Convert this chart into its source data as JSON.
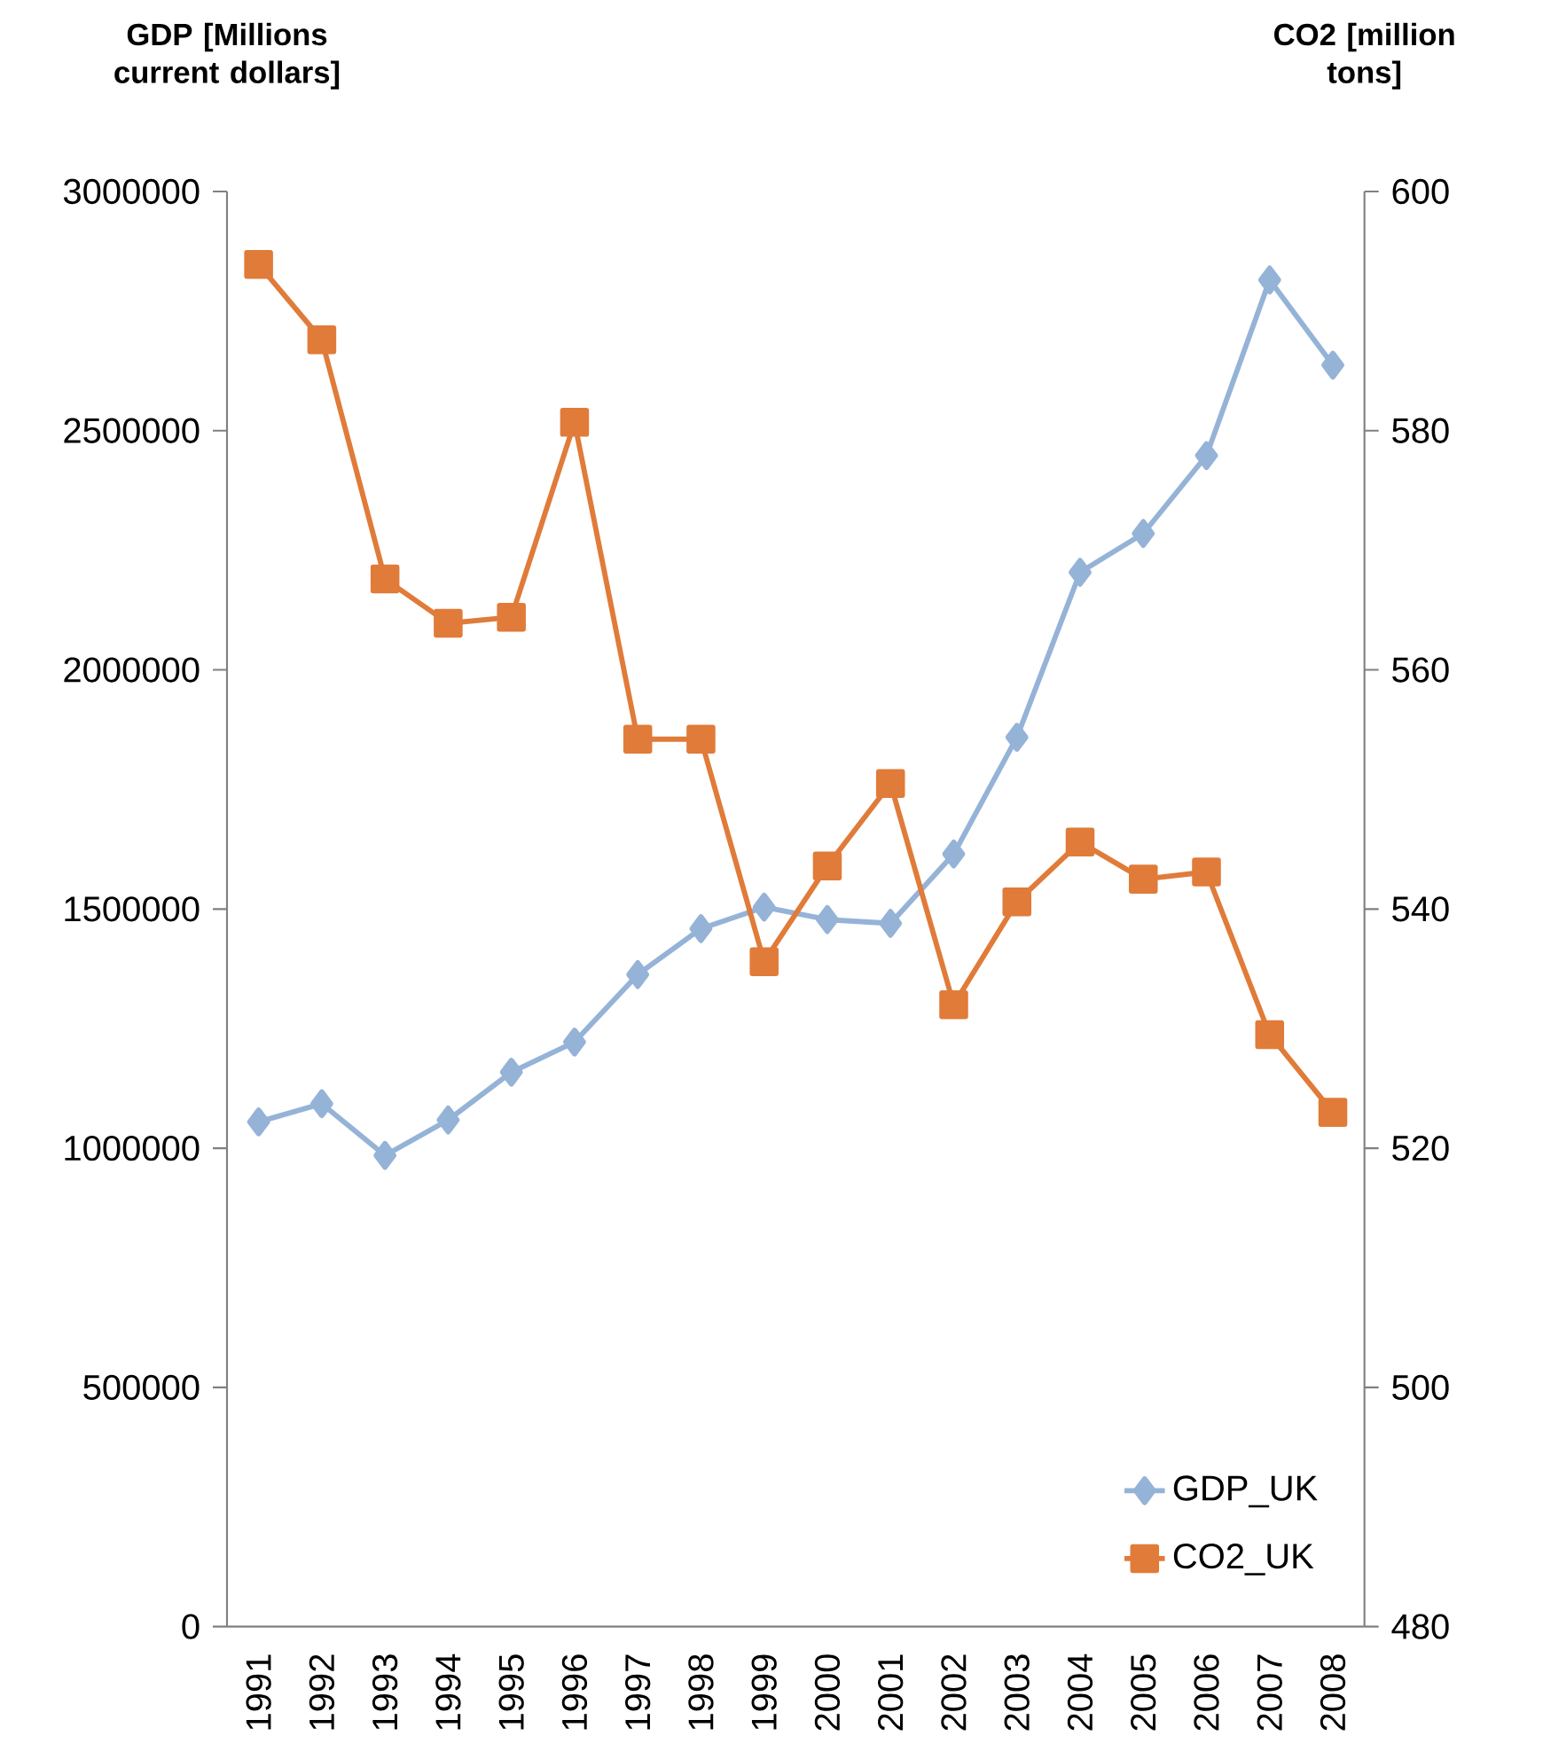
{
  "chart_data": {
    "type": "line",
    "ylabel": "GDP [Millions current dollars]",
    "y2label": "CO2 [million tons]",
    "categories": [
      "1991",
      "1992",
      "1993",
      "1994",
      "1995",
      "1996",
      "1997",
      "1998",
      "1999",
      "2000",
      "2001",
      "2002",
      "2003",
      "2004",
      "2005",
      "2006",
      "2007",
      "2008"
    ],
    "series": [
      {
        "name": "GDP_UK",
        "color": "#95b3d7",
        "marker": "diamond",
        "values": [
          1055000,
          1093000,
          985000,
          1059000,
          1159000,
          1222000,
          1363000,
          1459000,
          1504000,
          1478000,
          1470000,
          1615000,
          1859000,
          2204000,
          2285000,
          2448000,
          2815000,
          2637000
        ]
      },
      {
        "name": "CO2_UK",
        "color": "#e07b39",
        "marker": "square",
        "axis": "y2",
        "values": [
          593.9,
          587.6,
          567.6,
          563.9,
          564.4,
          580.7,
          554.2,
          554.2,
          535.6,
          543.6,
          550.5,
          532,
          540.6,
          545.6,
          542.5,
          543.1,
          529.5,
          523
        ]
      }
    ],
    "ylim": [
      0,
      3000000
    ],
    "yticks": [
      0,
      500000,
      1000000,
      1500000,
      2000000,
      2500000,
      3000000
    ],
    "y2lim": [
      480,
      600
    ],
    "y2ticks": [
      480,
      500,
      520,
      540,
      560,
      580,
      600
    ],
    "grid": false,
    "legend": "bottom right",
    "line_style": "solid"
  }
}
